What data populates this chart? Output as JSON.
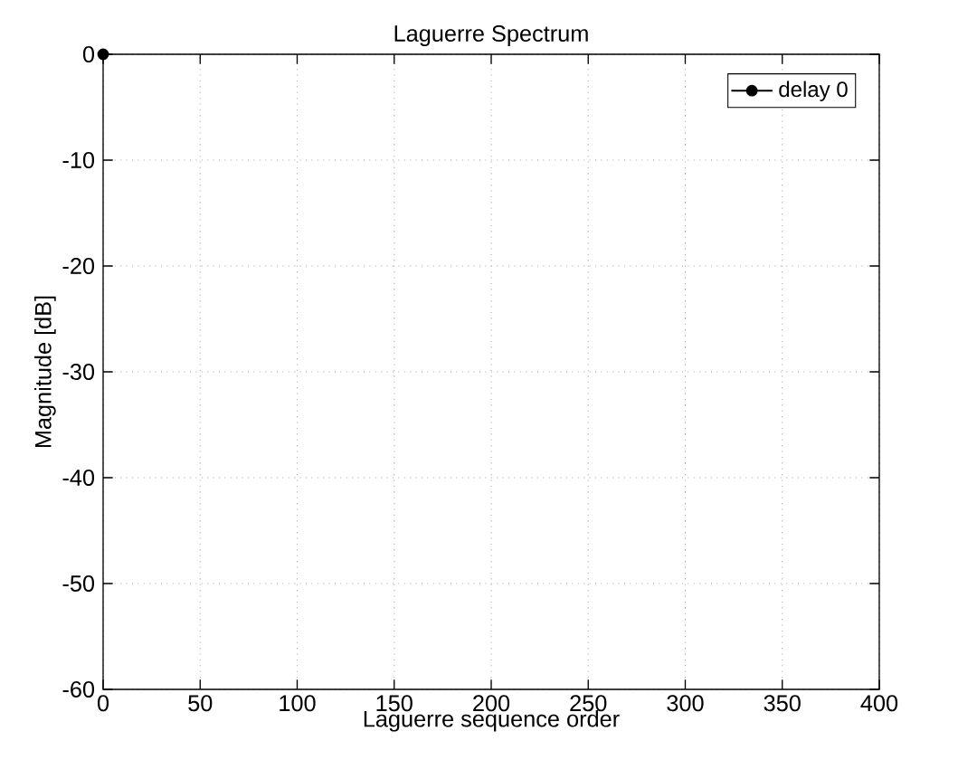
{
  "chart_data": {
    "type": "line",
    "title": "Laguerre Spectrum",
    "xlabel": "Laguerre sequence order",
    "ylabel": "Magnitude [dB]",
    "xlim": [
      0,
      400
    ],
    "ylim": [
      -60,
      0
    ],
    "xticks": [
      0,
      50,
      100,
      150,
      200,
      250,
      300,
      350,
      400
    ],
    "yticks": [
      -60,
      -50,
      -40,
      -30,
      -20,
      -10,
      0
    ],
    "series": [
      {
        "name": "delay 0",
        "color": "#000000",
        "x": [
          0
        ],
        "values": [
          0
        ]
      }
    ],
    "marker": "circle",
    "line_style": "solid",
    "grid": true,
    "legend": "top right"
  }
}
